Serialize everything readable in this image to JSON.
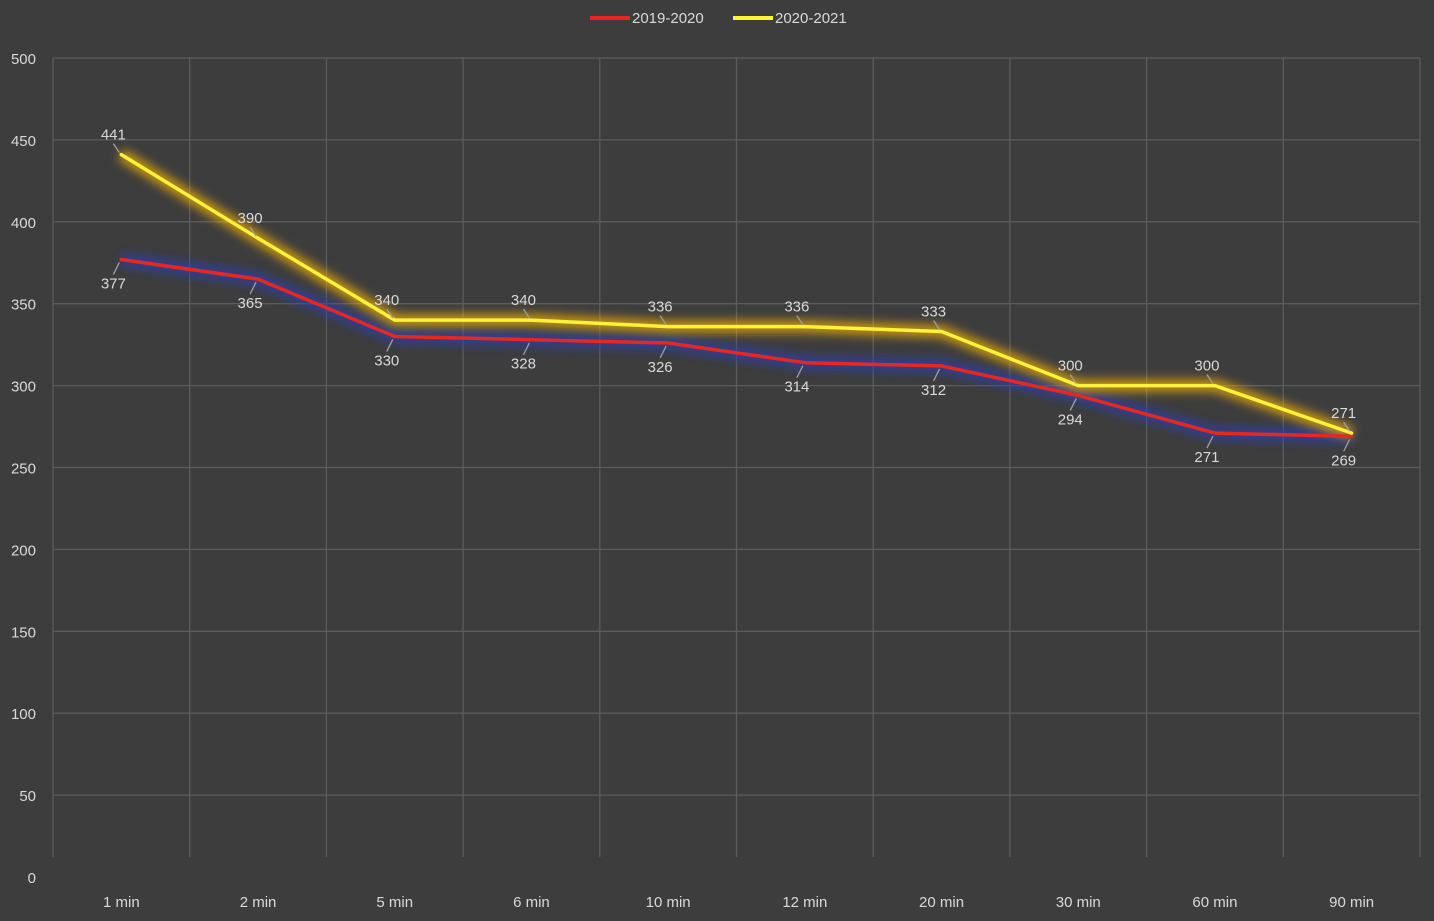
{
  "chart_data": {
    "type": "line",
    "categories": [
      "1 min",
      "2 min",
      "5 min",
      "6 min",
      "10 min",
      "12 min",
      "20 min",
      "30 min",
      "60 min",
      "90 min"
    ],
    "series": [
      {
        "name": "2019-2020",
        "color": "#e8271f",
        "glow": "#2a3fbf",
        "label_position": "below",
        "values": [
          377,
          365,
          330,
          328,
          326,
          314,
          312,
          294,
          271,
          269
        ]
      },
      {
        "name": "2020-2021",
        "color": "#fbf23a",
        "glow": "#ffb800",
        "label_position": "above",
        "values": [
          441,
          390,
          340,
          340,
          336,
          336,
          333,
          300,
          300,
          271
        ]
      }
    ],
    "ylim": [
      0,
      500
    ],
    "yticks": [
      0,
      50,
      100,
      150,
      200,
      250,
      300,
      350,
      400,
      450,
      500
    ],
    "grid": true,
    "legend": "top-center",
    "title": "",
    "xlabel": "",
    "ylabel": ""
  },
  "theme": {
    "background": "#3d3d3d",
    "grid_color": "#5c5c5c",
    "text_color": "#d9d9d9"
  }
}
